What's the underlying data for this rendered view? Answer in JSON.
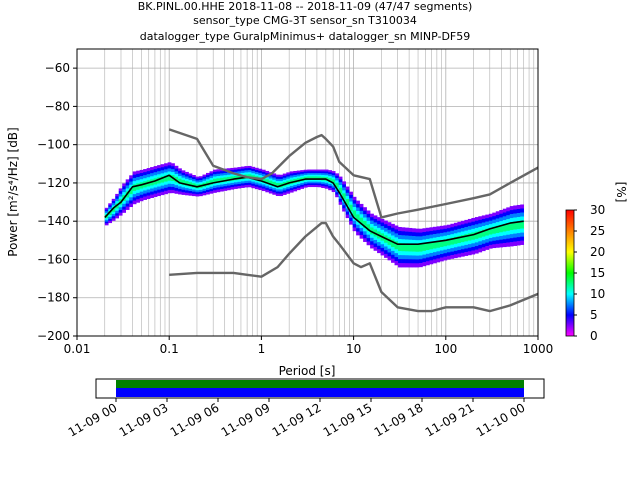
{
  "title": {
    "line1": "BK.PINL.00.HHE   2018-11-08 -- 2018-11-09  (47/47 segments)",
    "line2": "sensor_type CMG-3T sensor_sn T310034",
    "line3": "datalogger_type GuralpMinimus+ datalogger_sn MINP-DF59"
  },
  "chart_data": [
    {
      "type": "heatmap",
      "title": "",
      "xlabel": "Period [s]",
      "ylabel": "Power [m²/s⁴/Hz] [dB]",
      "xscale": "log",
      "xlim": [
        0.01,
        1000
      ],
      "ylim": [
        -200,
        -50
      ],
      "x_ticks": [
        {
          "value": 0.01,
          "label": "0.01"
        },
        {
          "value": 0.1,
          "label": "0.1"
        },
        {
          "value": 1,
          "label": "1"
        },
        {
          "value": 10,
          "label": "10"
        },
        {
          "value": 100,
          "label": "100"
        },
        {
          "value": 1000,
          "label": "1000"
        }
      ],
      "y_ticks": [
        {
          "value": -60,
          "label": "−60"
        },
        {
          "value": -80,
          "label": "−80"
        },
        {
          "value": -100,
          "label": "−100"
        },
        {
          "value": -120,
          "label": "−120"
        },
        {
          "value": -140,
          "label": "−140"
        },
        {
          "value": -160,
          "label": "−160"
        },
        {
          "value": -180,
          "label": "−180"
        },
        {
          "value": -200,
          "label": "−200"
        }
      ],
      "grid": true,
      "series": [
        {
          "role": "mean",
          "color": "#000000",
          "x": [
            0.02,
            0.025,
            0.03,
            0.04,
            0.05,
            0.07,
            0.1,
            0.13,
            0.2,
            0.3,
            0.5,
            0.7,
            1,
            1.5,
            2,
            3,
            4,
            5,
            6,
            7,
            10,
            15,
            20,
            30,
            50,
            100,
            200,
            300,
            500,
            700
          ],
          "y": [
            -138,
            -133,
            -130,
            -122,
            -121,
            -119,
            -116,
            -120,
            -122,
            -120,
            -118,
            -117,
            -119,
            -122,
            -120,
            -118,
            -118,
            -118,
            -120,
            -125,
            -138,
            -145,
            -148,
            -152,
            -152,
            -150,
            -147,
            -144,
            -141,
            -140
          ]
        },
        {
          "role": "envelope-upper",
          "color": "#666666",
          "x": [
            0.1,
            0.2,
            0.3,
            0.5,
            0.7,
            1,
            1.3,
            2,
            3,
            4,
            4.5,
            5,
            6,
            7,
            10,
            15,
            20,
            30,
            50,
            100,
            200,
            300,
            500,
            1000
          ],
          "y": [
            -92,
            -97,
            -111,
            -115,
            -117,
            -118,
            -115,
            -106,
            -99,
            -96,
            -95,
            -97,
            -101,
            -109,
            -116,
            -118,
            -138,
            -136,
            -134,
            -131,
            -128,
            -126,
            -120,
            -112
          ]
        },
        {
          "role": "envelope-lower",
          "color": "#666666",
          "x": [
            0.1,
            0.2,
            0.3,
            0.5,
            0.7,
            1,
            1.5,
            2,
            3,
            4,
            4.5,
            5,
            6,
            7,
            10,
            12,
            15,
            20,
            30,
            50,
            70,
            100,
            200,
            300,
            500,
            1000
          ],
          "y": [
            -168,
            -167,
            -167,
            -167,
            -168,
            -169,
            -164,
            -157,
            -148,
            -143,
            -141,
            -141,
            -148,
            -152,
            -162,
            -164,
            -162,
            -177,
            -185,
            -187,
            -187,
            -185,
            -185,
            -187,
            -184,
            -178
          ]
        }
      ],
      "density_band": {
        "x": [
          0.02,
          0.025,
          0.03,
          0.04,
          0.05,
          0.07,
          0.1,
          0.13,
          0.2,
          0.3,
          0.5,
          0.7,
          1,
          1.5,
          2,
          3,
          4,
          5,
          6,
          7,
          10,
          15,
          20,
          30,
          50,
          100,
          200,
          300,
          500,
          700
        ],
        "y_top": [
          -133,
          -127,
          -121,
          -114,
          -113,
          -111,
          -109,
          -113,
          -117,
          -113,
          -112,
          -111,
          -113,
          -116,
          -114,
          -113,
          -113,
          -113,
          -114,
          -117,
          -128,
          -136,
          -139,
          -143,
          -144,
          -142,
          -138,
          -136,
          -132,
          -131
        ],
        "y_bottom": [
          -142,
          -139,
          -136,
          -131,
          -129,
          -127,
          -125,
          -126,
          -127,
          -125,
          -123,
          -122,
          -124,
          -127,
          -125,
          -122,
          -122,
          -123,
          -125,
          -132,
          -146,
          -154,
          -158,
          -164,
          -164,
          -160,
          -157,
          -154,
          -153,
          -152
        ]
      },
      "colorbar": {
        "label": "[%]",
        "min": 0,
        "max": 30,
        "ticks": [
          {
            "value": 0,
            "label": "0"
          },
          {
            "value": 5,
            "label": "5"
          },
          {
            "value": 10,
            "label": "10"
          },
          {
            "value": 15,
            "label": "15"
          },
          {
            "value": 20,
            "label": "20"
          },
          {
            "value": 25,
            "label": "25"
          },
          {
            "value": 30,
            "label": "30"
          }
        ],
        "colormap": [
          "#ff00ff",
          "#0000ff",
          "#00ffff",
          "#00ff00",
          "#ffff00",
          "#ff8000",
          "#ff0000"
        ]
      }
    },
    {
      "type": "bar",
      "title": "",
      "xlabel": "",
      "ylabel": "",
      "start": "11-09 00",
      "end": "11-10 00",
      "x_ticks": [
        "11-09 00",
        "11-09 03",
        "11-09 06",
        "11-09 09",
        "11-09 12",
        "11-09 15",
        "11-09 18",
        "11-09 21",
        "11-10 00"
      ],
      "coverage_top_color": "#008000",
      "coverage_bottom_color": "#0000ff"
    }
  ]
}
